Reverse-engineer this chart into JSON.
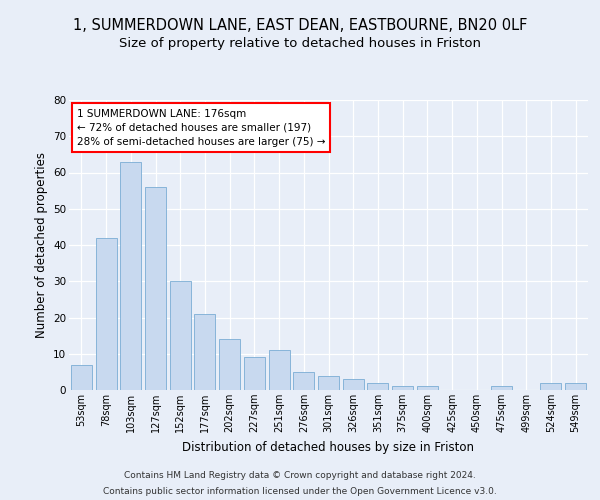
{
  "title": "1, SUMMERDOWN LANE, EAST DEAN, EASTBOURNE, BN20 0LF",
  "subtitle": "Size of property relative to detached houses in Friston",
  "xlabel": "Distribution of detached houses by size in Friston",
  "ylabel": "Number of detached properties",
  "cat_labels": [
    "53sqm",
    "78sqm",
    "103sqm",
    "127sqm",
    "152sqm",
    "177sqm",
    "202sqm",
    "227sqm",
    "251sqm",
    "276sqm",
    "301sqm",
    "326sqm",
    "351sqm",
    "375sqm",
    "400sqm",
    "425sqm",
    "450sqm",
    "475sqm",
    "499sqm",
    "524sqm",
    "549sqm"
  ],
  "values": [
    7,
    42,
    63,
    56,
    30,
    21,
    14,
    9,
    11,
    5,
    4,
    3,
    2,
    1,
    1,
    0,
    0,
    1,
    0,
    2,
    2
  ],
  "bar_color_normal": "#c8d9ef",
  "bar_edge_color": "#7aadd4",
  "annotation_text": "1 SUMMERDOWN LANE: 176sqm\n← 72% of detached houses are smaller (197)\n28% of semi-detached houses are larger (75) →",
  "vline_x": 5.5,
  "ylim": [
    0,
    80
  ],
  "yticks": [
    0,
    10,
    20,
    30,
    40,
    50,
    60,
    70,
    80
  ],
  "footer_line1": "Contains HM Land Registry data © Crown copyright and database right 2024.",
  "footer_line2": "Contains public sector information licensed under the Open Government Licence v3.0.",
  "bg_color": "#e8eef8",
  "plot_bg_color": "#e8eef8",
  "title_fontsize": 10.5,
  "subtitle_fontsize": 9.5,
  "xlabel_fontsize": 8.5,
  "ylabel_fontsize": 8.5,
  "tick_fontsize": 7,
  "annotation_fontsize": 7.5,
  "footer_fontsize": 6.5
}
